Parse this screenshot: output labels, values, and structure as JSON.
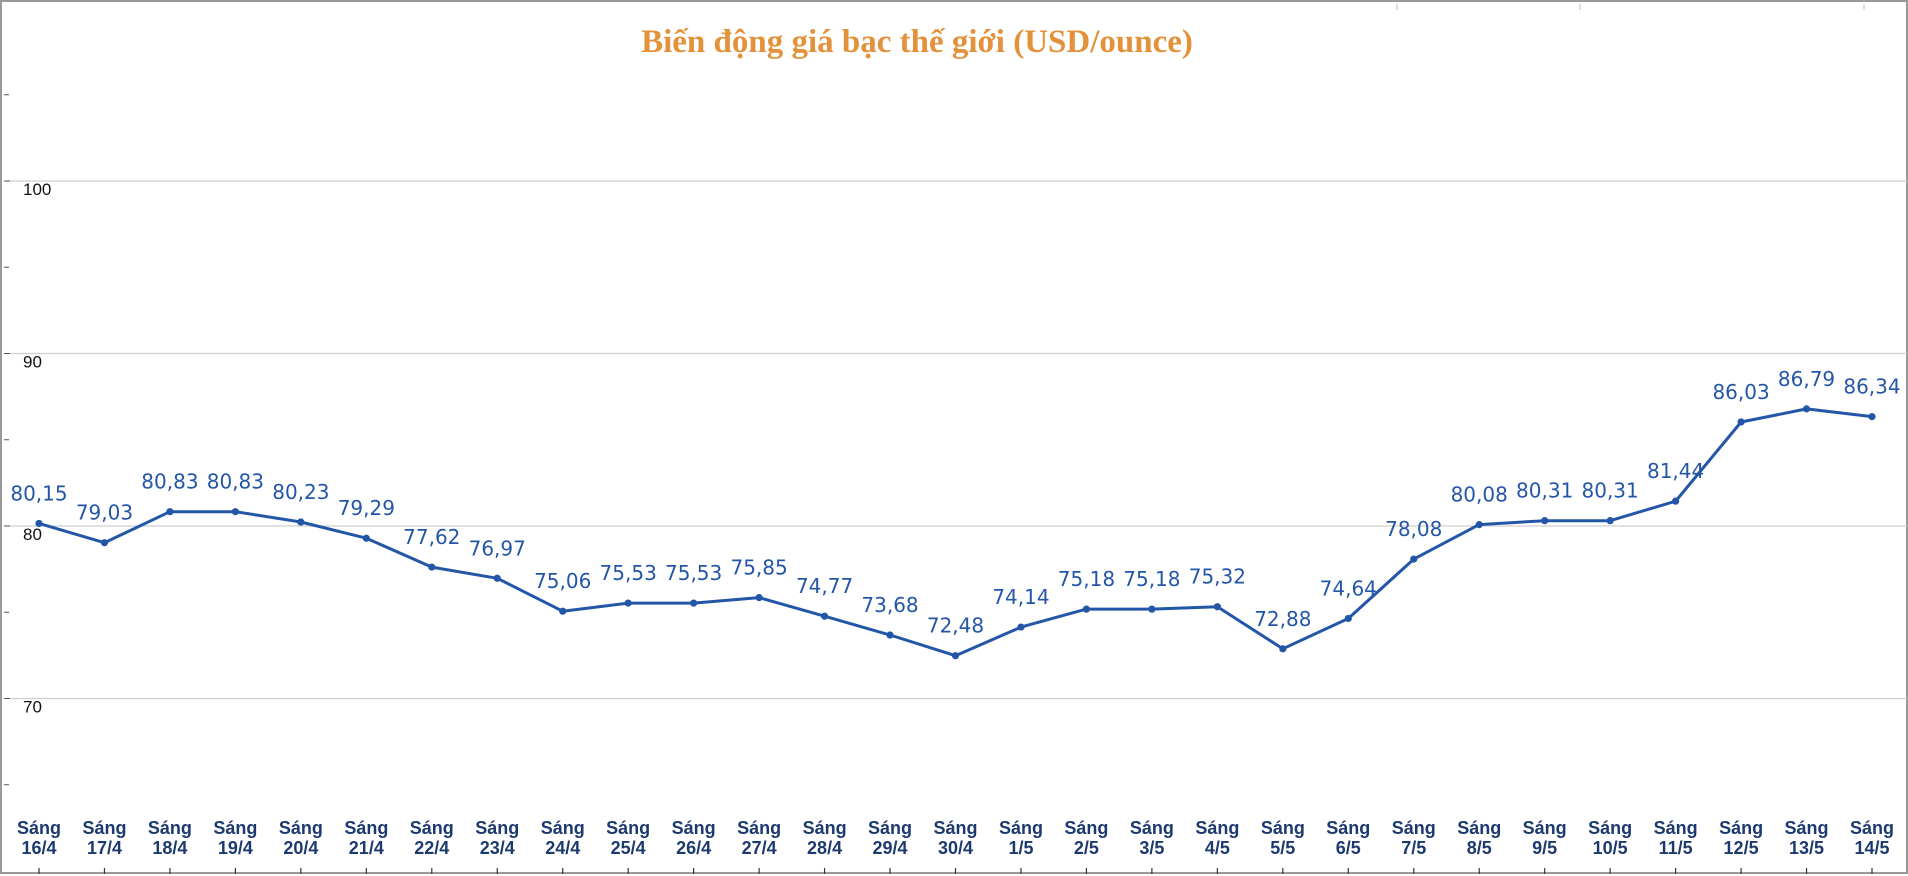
{
  "colors": {
    "title": "#e3913a",
    "line": "#2456a8",
    "label": "#2456a8",
    "grid": "#cfcfcf",
    "xtick": "#1d3a6e"
  },
  "chart_data": {
    "type": "line",
    "title": "Biến động giá bạc thế giới (USD/ounce)",
    "xlabel": "",
    "ylabel": "",
    "ylim": [
      62,
      110
    ],
    "yticks": [
      70,
      80,
      90,
      100
    ],
    "grid": true,
    "legend": "none",
    "categories": [
      [
        "Sáng",
        "16/4"
      ],
      [
        "Sáng",
        "17/4"
      ],
      [
        "Sáng",
        "18/4"
      ],
      [
        "Sáng",
        "19/4"
      ],
      [
        "Sáng",
        "20/4"
      ],
      [
        "Sáng",
        "21/4"
      ],
      [
        "Sáng",
        "22/4"
      ],
      [
        "Sáng",
        "23/4"
      ],
      [
        "Sáng",
        "24/4"
      ],
      [
        "Sáng",
        "25/4"
      ],
      [
        "Sáng",
        "26/4"
      ],
      [
        "Sáng",
        "27/4"
      ],
      [
        "Sáng",
        "28/4"
      ],
      [
        "Sáng",
        "29/4"
      ],
      [
        "Sáng",
        "30/4"
      ],
      [
        "Sáng",
        "1/5"
      ],
      [
        "Sáng",
        "2/5"
      ],
      [
        "Sáng",
        "3/5"
      ],
      [
        "Sáng",
        "4/5"
      ],
      [
        "Sáng",
        "5/5"
      ],
      [
        "Sáng",
        "6/5"
      ],
      [
        "Sáng",
        "7/5"
      ],
      [
        "Sáng",
        "8/5"
      ],
      [
        "Sáng",
        "9/5"
      ],
      [
        "Sáng",
        "10/5"
      ],
      [
        "Sáng",
        "11/5"
      ],
      [
        "Sáng",
        "12/5"
      ],
      [
        "Sáng",
        "13/5"
      ],
      [
        "Sáng",
        "14/5"
      ]
    ],
    "values": [
      80.15,
      79.03,
      80.83,
      80.83,
      80.23,
      79.29,
      77.62,
      76.97,
      75.06,
      75.53,
      75.53,
      75.85,
      74.77,
      73.68,
      72.48,
      74.14,
      75.18,
      75.18,
      75.32,
      72.88,
      74.64,
      78.08,
      80.08,
      80.31,
      80.31,
      81.44,
      86.03,
      86.79,
      86.34
    ],
    "labels": [
      "80,15",
      "79,03",
      "80,83",
      "80,83",
      "80,23",
      "79,29",
      "77,62",
      "76,97",
      "75,06",
      "75,53",
      "75,53",
      "75,85",
      "74,77",
      "73,68",
      "72,48",
      "74,14",
      "75,18",
      "75,18",
      "75,32",
      "72,88",
      "74,64",
      "78,08",
      "80,08",
      "80,31",
      "80,31",
      "81,44",
      "86,03",
      "86,79",
      "86,34"
    ]
  }
}
